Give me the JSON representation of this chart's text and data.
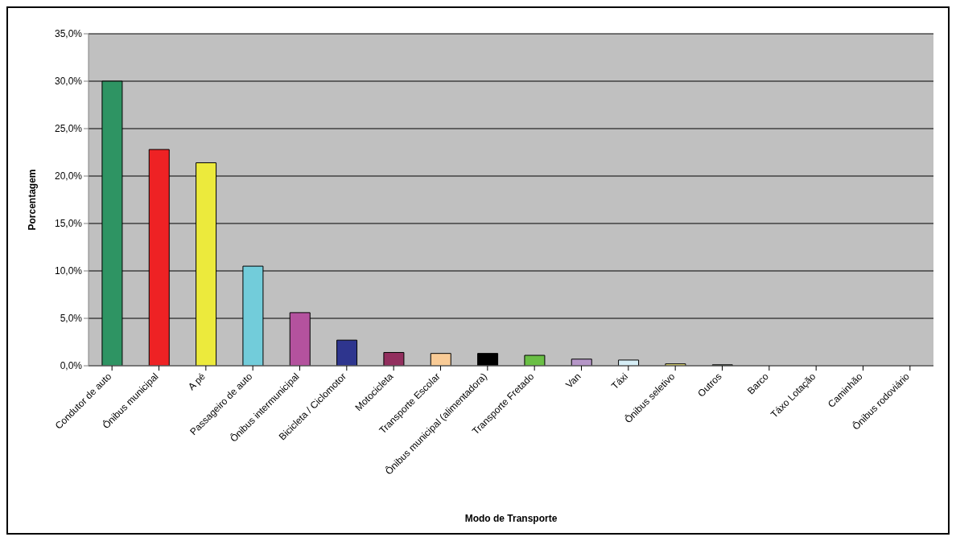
{
  "chart_data": {
    "type": "bar",
    "xlabel": "Modo de Transporte",
    "ylabel": "Porcentagem",
    "categories": [
      "Condutor de auto",
      "Ônibus municipal",
      "A pé",
      "Passageiro de auto",
      "Ônibus intermunicipal",
      "Bicicleta / Ciclomotor",
      "Motocicleta",
      "Transporte Escolar",
      "Ônibus municipal (alimentadora)",
      "Transporte Fretado",
      "Van",
      "Táxi",
      "Ônibus seletivo",
      "Outros",
      "Barco",
      "Táxo Lotação",
      "Caminhão",
      "Ônibus rodoviário"
    ],
    "values": [
      30.0,
      22.8,
      21.4,
      10.5,
      5.6,
      2.7,
      1.4,
      1.3,
      1.3,
      1.1,
      0.7,
      0.6,
      0.2,
      0.1,
      0,
      0,
      0,
      0
    ],
    "colors": [
      "#2e9463",
      "#ee2224",
      "#ecea3c",
      "#72ccda",
      "#b4529e",
      "#2e358e",
      "#922f5e",
      "#f9cb96",
      "#000000",
      "#6abf45",
      "#b596c7",
      "#d6eef6",
      "#e8e27a",
      "#1a3320",
      "#808080",
      "#808080",
      "#808080",
      "#808080"
    ],
    "ylim": [
      0,
      35
    ],
    "yticks": [
      {
        "value": 0,
        "label": "0,0%"
      },
      {
        "value": 5,
        "label": "5,0%"
      },
      {
        "value": 10,
        "label": "10,0%"
      },
      {
        "value": 15,
        "label": "15,0%"
      },
      {
        "value": 20,
        "label": "20,0%"
      },
      {
        "value": 25,
        "label": "25,0%"
      },
      {
        "value": 30,
        "label": "30,0%"
      },
      {
        "value": 35,
        "label": "35,0%"
      }
    ],
    "grid": "y",
    "legend": false
  }
}
